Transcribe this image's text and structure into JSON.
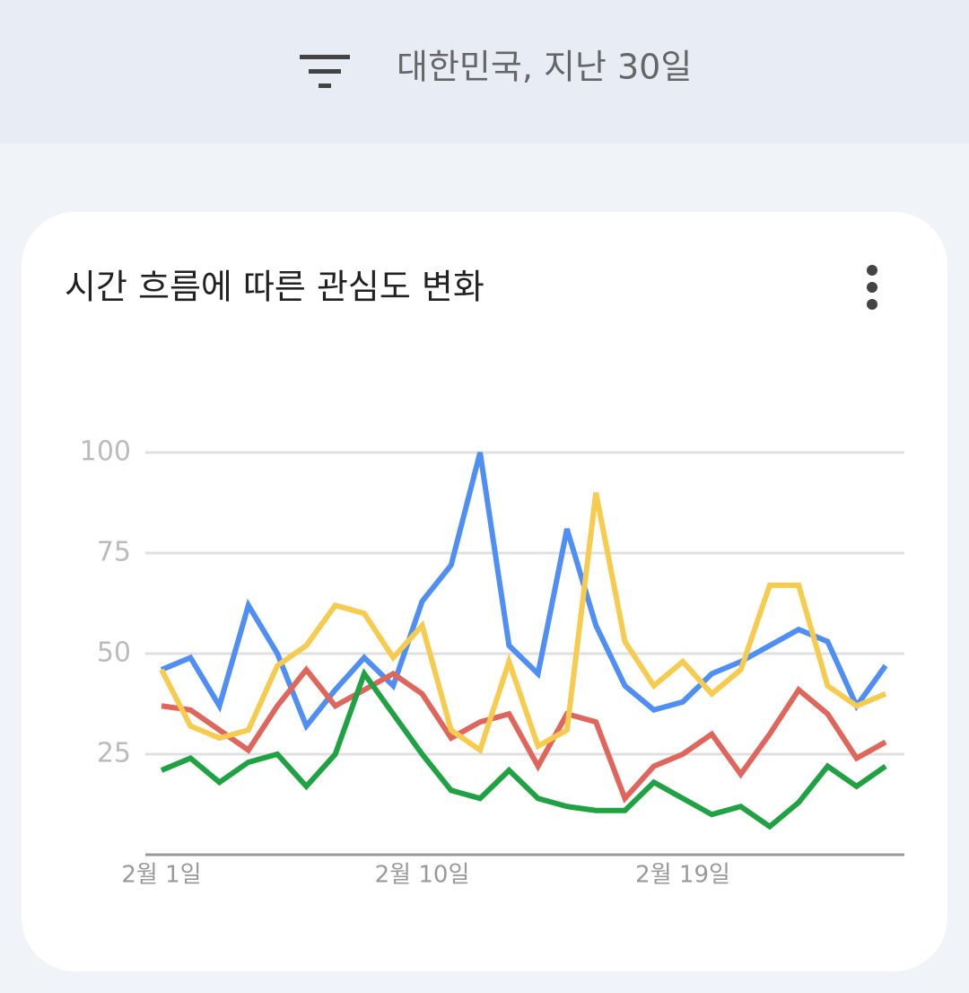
{
  "header": {
    "title": "대한민국, 지난 30일"
  },
  "chart_data": {
    "type": "line",
    "title": "시간 흐름에 따른 관심도 변화",
    "categories": [
      "2월 1일",
      null,
      null,
      null,
      null,
      null,
      null,
      null,
      null,
      "2월 10일",
      null,
      null,
      null,
      null,
      null,
      null,
      null,
      null,
      "2월 19일",
      null,
      null,
      null,
      null,
      null,
      null,
      null
    ],
    "series": [
      {
        "color": "#4e8ef5",
        "values": [
          46,
          49,
          37,
          62,
          50,
          32,
          41,
          49,
          42,
          63,
          72,
          100,
          52,
          45,
          81,
          57,
          42,
          36,
          38,
          45,
          48,
          52,
          56,
          53,
          37,
          47
        ]
      },
      {
        "color": "#e0665c",
        "values": [
          37,
          36,
          31,
          26,
          37,
          46,
          37,
          41,
          45,
          40,
          29,
          33,
          35,
          22,
          35,
          33,
          14,
          22,
          25,
          30,
          20,
          30,
          41,
          35,
          24,
          28
        ]
      },
      {
        "color": "#f7cb4d",
        "values": [
          46,
          32,
          29,
          31,
          47,
          52,
          62,
          60,
          49,
          57,
          31,
          26,
          48,
          27,
          31,
          90,
          53,
          42,
          48,
          40,
          46,
          67,
          67,
          42,
          37,
          40
        ]
      },
      {
        "color": "#1fa342",
        "values": [
          21,
          24,
          18,
          23,
          25,
          17,
          25,
          45,
          35,
          25,
          16,
          14,
          21,
          14,
          12,
          11,
          11,
          18,
          14,
          10,
          12,
          7,
          13,
          22,
          17,
          22
        ]
      }
    ],
    "ylim": [
      0,
      100
    ],
    "yticks": [
      25,
      50,
      75,
      100
    ],
    "grid": true
  }
}
